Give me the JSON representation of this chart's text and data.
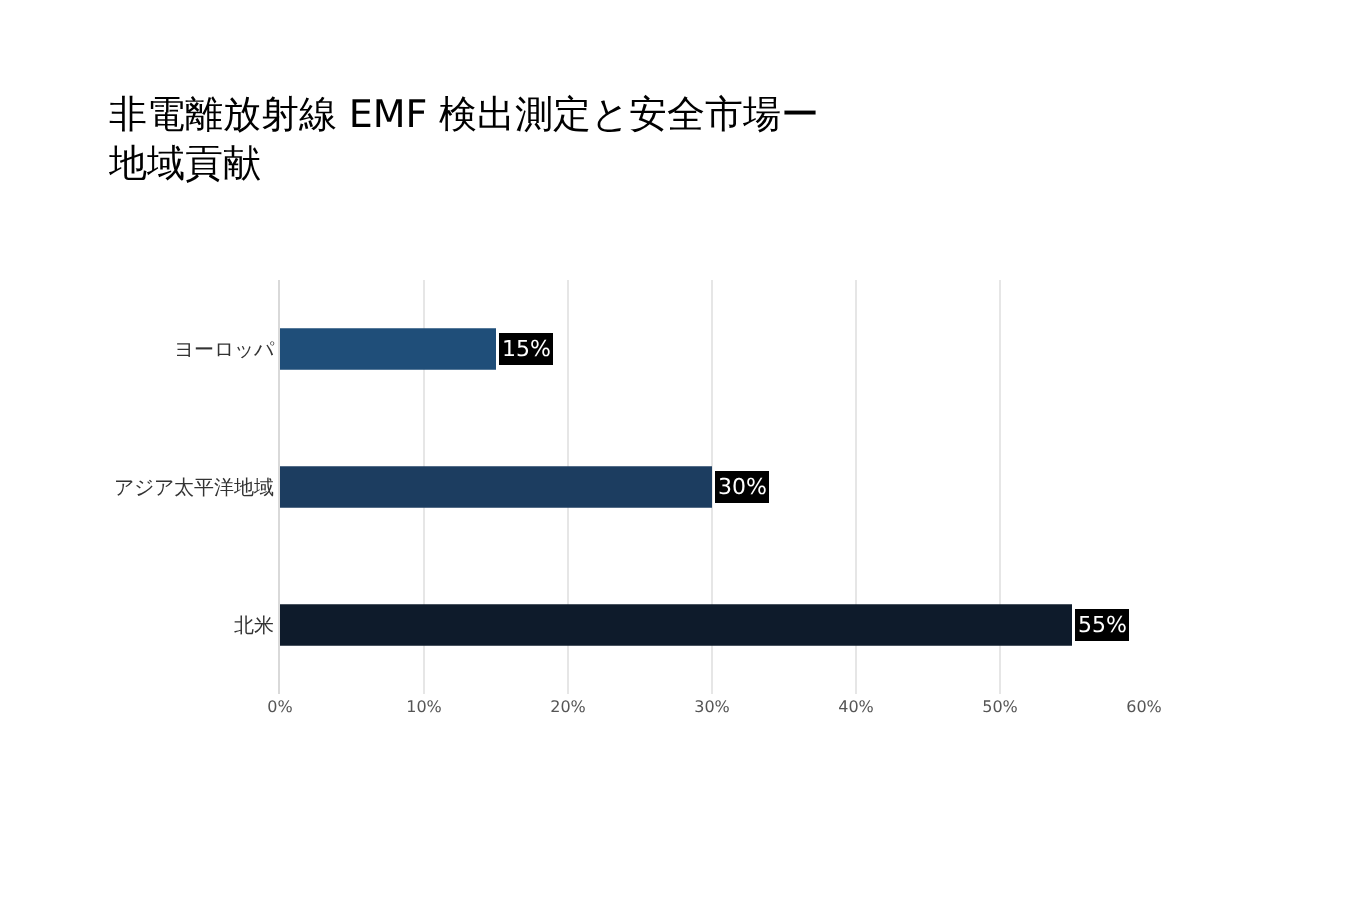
{
  "chart_data": {
    "type": "bar",
    "orientation": "horizontal",
    "title": "非電離放射線 EMF 検出測定と安全市場ー地域貢献",
    "categories": [
      "ヨーロッパ",
      "アジア太平洋地域",
      "北米"
    ],
    "values": [
      15,
      30,
      55
    ],
    "colors": [
      "#1f4e79",
      "#1c3d60",
      "#0e1b2b"
    ],
    "value_labels": [
      "15%",
      "30%",
      "55%"
    ],
    "xlim": [
      0,
      60
    ],
    "xticks": [
      {
        "value": 0,
        "label": "0%"
      },
      {
        "value": 10,
        "label": "10%"
      },
      {
        "value": 20,
        "label": "20%"
      },
      {
        "value": 30,
        "label": "30%"
      },
      {
        "value": 40,
        "label": "40%"
      },
      {
        "value": 50,
        "label": "50%"
      },
      {
        "value": 60,
        "label": "60%"
      }
    ],
    "grid": "x"
  }
}
